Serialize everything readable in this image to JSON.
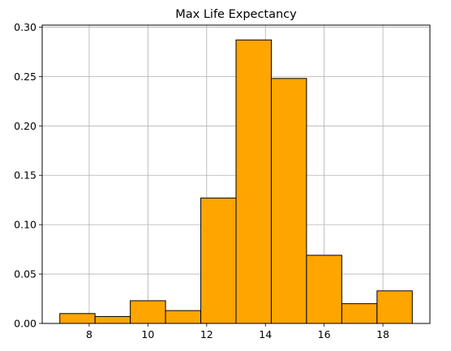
{
  "chart_data": {
    "type": "bar",
    "title": "Max Life Expectancy",
    "xlabel": "",
    "ylabel": "",
    "bins": [
      {
        "x0": 7.0,
        "x1": 8.2,
        "value": 0.01
      },
      {
        "x0": 8.2,
        "x1": 9.4,
        "value": 0.007
      },
      {
        "x0": 9.4,
        "x1": 10.6,
        "value": 0.023
      },
      {
        "x0": 10.6,
        "x1": 11.8,
        "value": 0.013
      },
      {
        "x0": 11.8,
        "x1": 13.0,
        "value": 0.127
      },
      {
        "x0": 13.0,
        "x1": 14.2,
        "value": 0.287
      },
      {
        "x0": 14.2,
        "x1": 15.4,
        "value": 0.248
      },
      {
        "x0": 15.4,
        "x1": 16.6,
        "value": 0.069
      },
      {
        "x0": 16.6,
        "x1": 17.8,
        "value": 0.02
      },
      {
        "x0": 17.8,
        "x1": 19.0,
        "value": 0.033
      }
    ],
    "xlim": [
      6.4,
      19.6
    ],
    "ylim": [
      0,
      0.302
    ],
    "xticks": [
      8,
      10,
      12,
      14,
      16,
      18
    ],
    "xtick_labels": [
      "8",
      "10",
      "12",
      "14",
      "16",
      "18"
    ],
    "yticks": [
      0,
      0.05,
      0.1,
      0.15,
      0.2,
      0.25,
      0.3
    ],
    "ytick_labels": [
      "0.00",
      "0.05",
      "0.10",
      "0.15",
      "0.20",
      "0.25",
      "0.30"
    ],
    "grid": true,
    "bar_color": "#ffa500",
    "edge_color": "#000000",
    "grid_color": "#b0b0b0"
  }
}
